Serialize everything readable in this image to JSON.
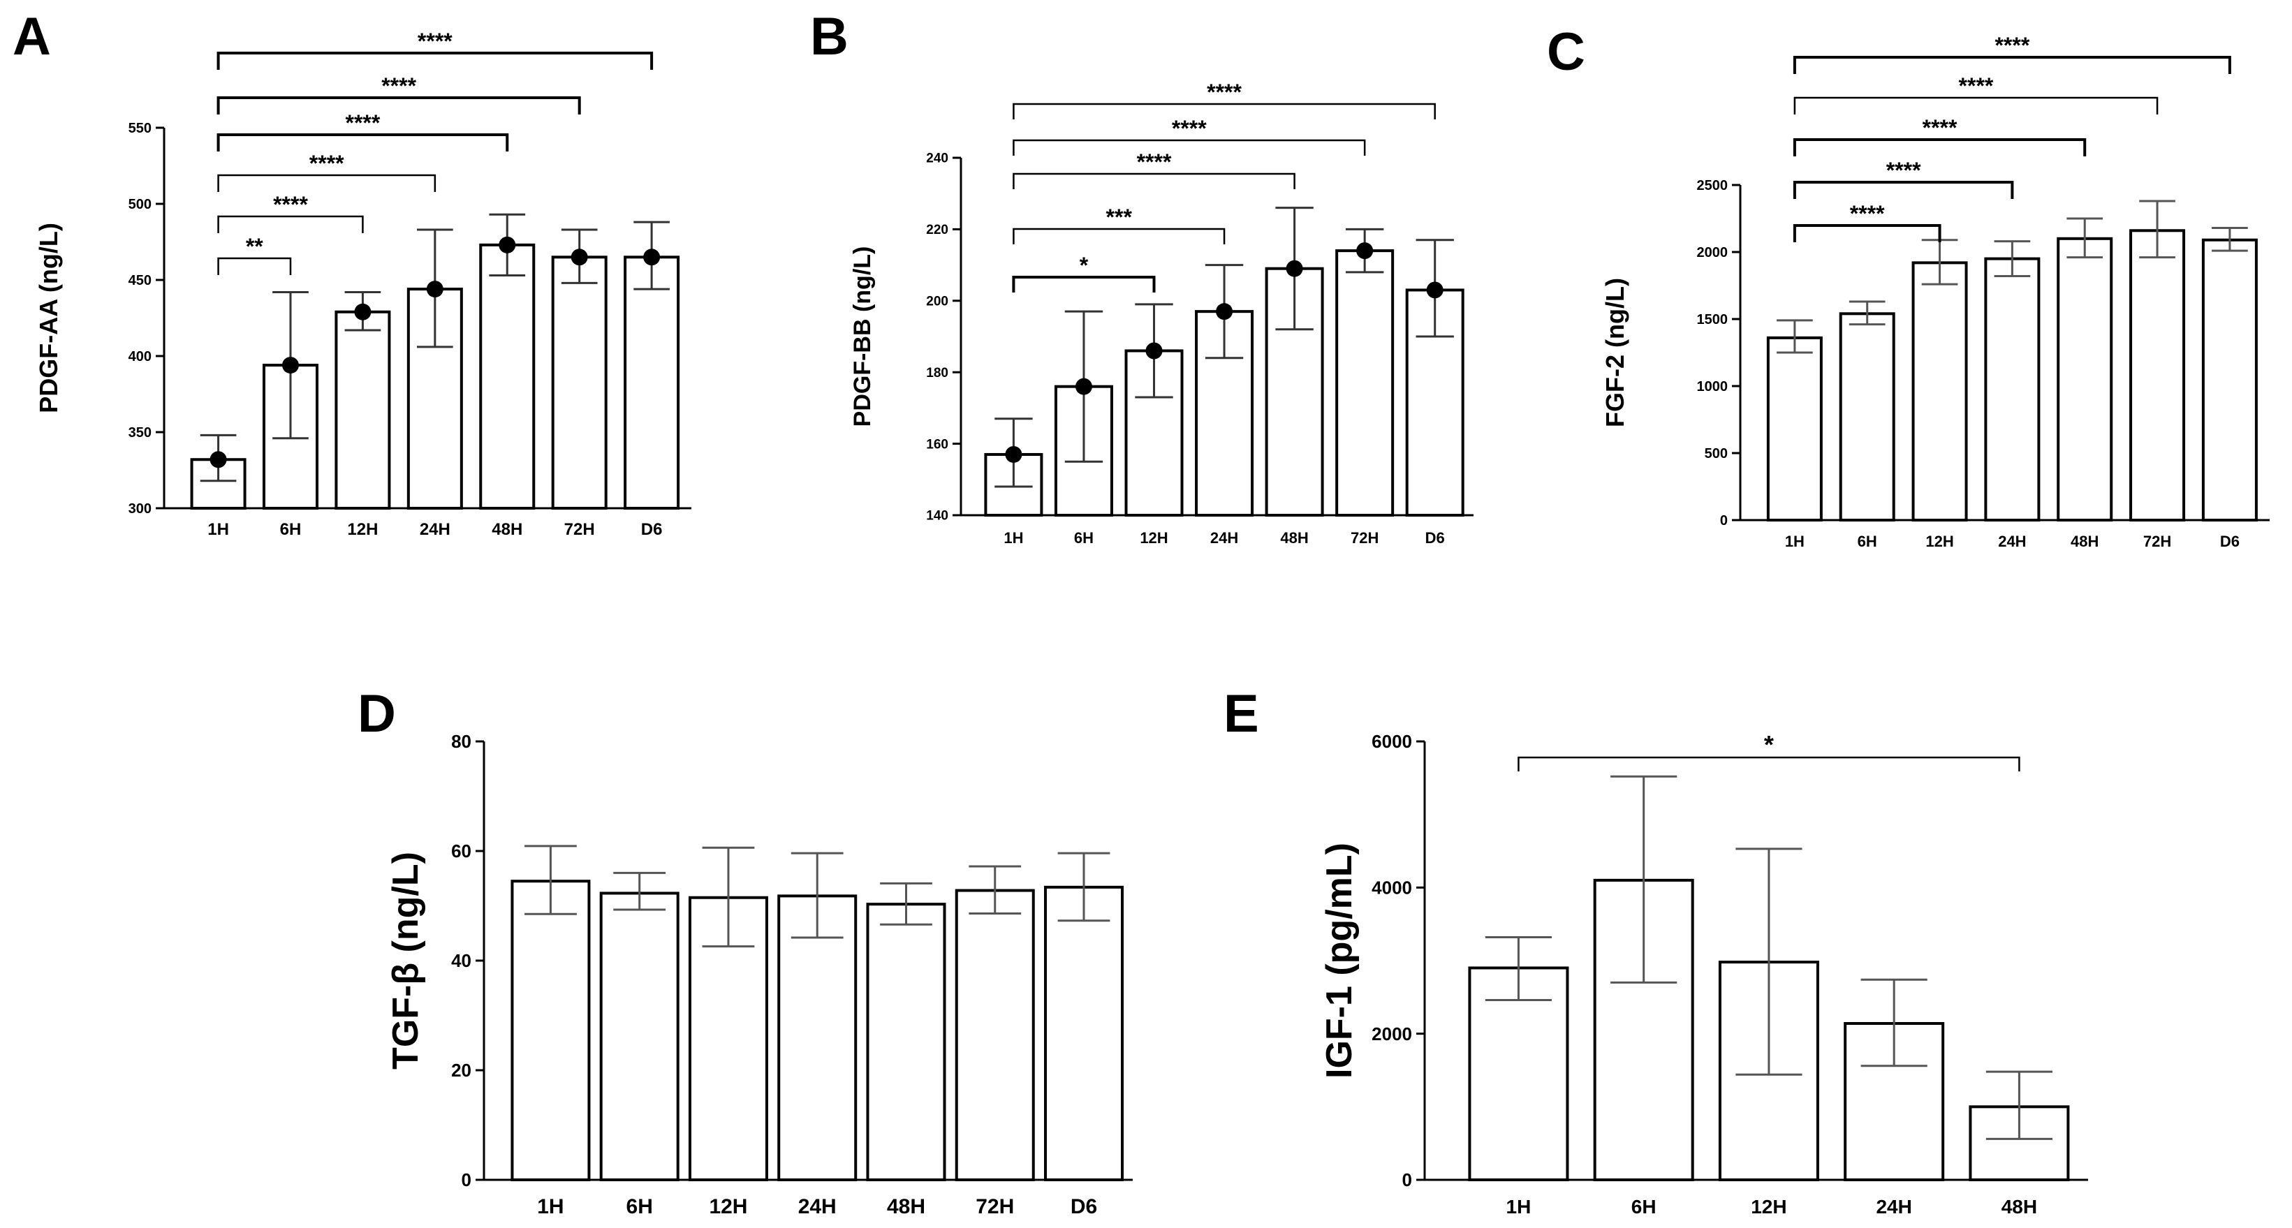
{
  "colors": {
    "bar_fill": "#ffffff",
    "bar_stroke": "#000000",
    "axis": "#000000",
    "error_bar_dot": "#333333",
    "error_bar_plain": "#555555"
  },
  "chart_data": [
    {
      "panel": "A",
      "type": "bar",
      "ylabel": "PDGF-AA (ng/L)",
      "categories": [
        "1H",
        "6H",
        "12H",
        "24H",
        "48H",
        "72H",
        "D6"
      ],
      "yticks": [
        "300",
        "350",
        "400",
        "450",
        "500",
        "550"
      ],
      "ylim": [
        300,
        550
      ],
      "values": [
        332,
        394,
        429,
        444,
        473,
        465,
        465
      ],
      "err_low": [
        318,
        346,
        417,
        406,
        453,
        448,
        444
      ],
      "err_high": [
        348,
        442,
        442,
        483,
        493,
        483,
        488
      ],
      "markers": true,
      "comparisons": [
        {
          "from": "1H",
          "to": "6H",
          "label": "**"
        },
        {
          "from": "1H",
          "to": "12H",
          "label": "****"
        },
        {
          "from": "1H",
          "to": "24H",
          "label": "****"
        },
        {
          "from": "1H",
          "to": "48H",
          "label": "****"
        },
        {
          "from": "1H",
          "to": "72H",
          "label": "****"
        },
        {
          "from": "1H",
          "to": "D6",
          "label": "****"
        }
      ]
    },
    {
      "panel": "B",
      "type": "bar",
      "ylabel": "PDGF-BB (ng/L)",
      "categories": [
        "1H",
        "6H",
        "12H",
        "24H",
        "48H",
        "72H",
        "D6"
      ],
      "yticks": [
        "140",
        "160",
        "180",
        "200",
        "220",
        "240"
      ],
      "ylim": [
        140,
        240
      ],
      "values": [
        157,
        176,
        186,
        197,
        209,
        214,
        203
      ],
      "err_low": [
        148,
        155,
        173,
        184,
        192,
        208,
        190
      ],
      "err_high": [
        167,
        197,
        199,
        210,
        226,
        220,
        217
      ],
      "markers": true,
      "comparisons": [
        {
          "from": "1H",
          "to": "12H",
          "label": "*"
        },
        {
          "from": "1H",
          "to": "24H",
          "label": "***"
        },
        {
          "from": "1H",
          "to": "48H",
          "label": "****"
        },
        {
          "from": "1H",
          "to": "72H",
          "label": "****"
        },
        {
          "from": "1H",
          "to": "D6",
          "label": "****"
        }
      ]
    },
    {
      "panel": "C",
      "type": "bar",
      "ylabel": "FGF-2 (ng/L)",
      "categories": [
        "1H",
        "6H",
        "12H",
        "24H",
        "48H",
        "72H",
        "D6"
      ],
      "yticks": [
        "0",
        "500",
        "1000",
        "1500",
        "2000",
        "2500"
      ],
      "ylim": [
        0,
        2500
      ],
      "values": [
        1360,
        1540,
        1920,
        1950,
        2100,
        2160,
        2090
      ],
      "err_low": [
        1250,
        1460,
        1760,
        1820,
        1960,
        1960,
        2010
      ],
      "err_high": [
        1490,
        1630,
        2090,
        2080,
        2250,
        2380,
        2180
      ],
      "markers": false,
      "comparisons": [
        {
          "from": "1H",
          "to": "12H",
          "label": "****"
        },
        {
          "from": "1H",
          "to": "24H",
          "label": "****"
        },
        {
          "from": "1H",
          "to": "48H",
          "label": "****"
        },
        {
          "from": "1H",
          "to": "72H",
          "label": "****"
        },
        {
          "from": "1H",
          "to": "D6",
          "label": "****"
        }
      ]
    },
    {
      "panel": "D",
      "type": "bar",
      "ylabel": "TGF-β (ng/L)",
      "categories": [
        "1H",
        "6H",
        "12H",
        "24H",
        "48H",
        "72H",
        "D6"
      ],
      "yticks": [
        "0",
        "20",
        "40",
        "60",
        "80"
      ],
      "ylim": [
        0,
        80
      ],
      "values": [
        54.5,
        52.3,
        51.5,
        51.8,
        50.3,
        52.8,
        53.4
      ],
      "err_low": [
        48.5,
        49.3,
        42.6,
        44.2,
        46.6,
        48.6,
        47.3
      ],
      "err_high": [
        60.9,
        56.0,
        60.6,
        59.6,
        54.1,
        57.2,
        59.6
      ],
      "markers": false,
      "comparisons": []
    },
    {
      "panel": "E",
      "type": "bar",
      "ylabel": "IGF-1 (pg/mL)",
      "categories": [
        "1H",
        "6H",
        "12H",
        "24H",
        "48H"
      ],
      "yticks": [
        "0",
        "2000",
        "4000",
        "6000"
      ],
      "ylim": [
        0,
        6000
      ],
      "values": [
        2900,
        4100,
        2980,
        2140,
        1000
      ],
      "err_low": [
        2460,
        2700,
        1440,
        1560,
        560
      ],
      "err_high": [
        3320,
        5520,
        4530,
        2740,
        1480
      ],
      "markers": false,
      "comparisons": [
        {
          "from": "1H",
          "to": "48H",
          "label": "*"
        }
      ]
    }
  ]
}
